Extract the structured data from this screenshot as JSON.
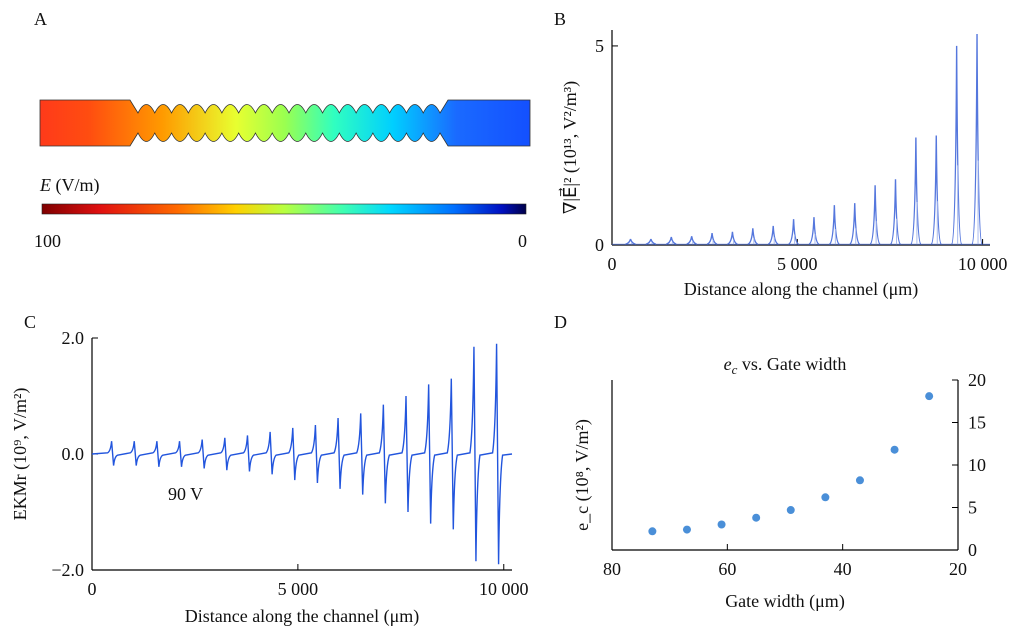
{
  "panels": {
    "a": "A",
    "b": "B",
    "c": "C",
    "d": "D"
  },
  "panel_a": {
    "colorbar_label_var": "E",
    "colorbar_label_unit": " (V/m)",
    "colorbar_max": "100",
    "colorbar_min": "0",
    "colors": [
      "#7f0000",
      "#e01010",
      "#ff6a00",
      "#ffd000",
      "#b8ff40",
      "#40ffb0",
      "#00d8ff",
      "#0070ff",
      "#0010c0",
      "#00004a"
    ]
  },
  "chart_data": [
    {
      "id": "B",
      "type": "line",
      "ylabel": "∇|E⃗|² (10¹³, V²/m³)",
      "xlabel": "Distance along the channel (μm)",
      "xlim": [
        0,
        10200
      ],
      "ylim": [
        0,
        5.4
      ],
      "xticks": [
        "0",
        "5 000",
        "10 000"
      ],
      "yticks": [
        "0",
        "5"
      ],
      "color": "#5577dd",
      "peaks_x": [
        500,
        1050,
        1600,
        2150,
        2700,
        3250,
        3800,
        4350,
        4900,
        5450,
        6000,
        6550,
        7100,
        7650,
        8200,
        8750,
        9300,
        9850
      ],
      "peaks_y": [
        0.15,
        0.15,
        0.2,
        0.22,
        0.3,
        0.33,
        0.42,
        0.48,
        0.65,
        0.7,
        1.0,
        1.05,
        1.5,
        1.65,
        2.7,
        2.75,
        5.0,
        5.3
      ]
    },
    {
      "id": "C",
      "type": "line",
      "ylabel": "EKMr (10⁹, V/m²)",
      "xlabel": "Distance along the channel (μm)",
      "xlim": [
        0,
        10200
      ],
      "ylim": [
        -2.0,
        2.0
      ],
      "xticks": [
        "0",
        "5 000",
        "10 000"
      ],
      "yticks": [
        "2.0",
        "0.0",
        "−2.0"
      ],
      "annotation": "90 V",
      "color": "#2255dd",
      "peaks_x": [
        500,
        1050,
        1600,
        2150,
        2700,
        3250,
        3800,
        4350,
        4900,
        5450,
        6000,
        6550,
        7100,
        7650,
        8200,
        8750,
        9300,
        9850
      ],
      "peaks_up": [
        0.22,
        0.22,
        0.22,
        0.22,
        0.25,
        0.28,
        0.32,
        0.38,
        0.45,
        0.5,
        0.62,
        0.7,
        0.85,
        1.0,
        1.2,
        1.3,
        1.85,
        1.9
      ],
      "peaks_down": [
        -0.2,
        -0.2,
        -0.22,
        -0.22,
        -0.25,
        -0.28,
        -0.3,
        -0.35,
        -0.45,
        -0.5,
        -0.6,
        -0.7,
        -0.85,
        -1.0,
        -1.2,
        -1.3,
        -1.85,
        -1.9
      ]
    },
    {
      "id": "D",
      "type": "scatter",
      "title_var": "e",
      "title_sub": "c",
      "title_rest": " vs. Gate width",
      "ylabel": "e_c (10⁸, V/m²)",
      "xlabel": "Gate width (μm)",
      "xlim": [
        80,
        20
      ],
      "ylim": [
        0,
        20
      ],
      "xticks": [
        "80",
        "60",
        "40",
        "20"
      ],
      "yticks": [
        "0",
        "5",
        "10",
        "15",
        "20"
      ],
      "color": "#4a8fd8",
      "x": [
        73,
        67,
        61,
        55,
        49,
        43,
        37,
        31,
        25
      ],
      "y": [
        2.2,
        2.4,
        3.0,
        3.8,
        4.7,
        6.2,
        8.2,
        11.8,
        18.1
      ]
    }
  ]
}
